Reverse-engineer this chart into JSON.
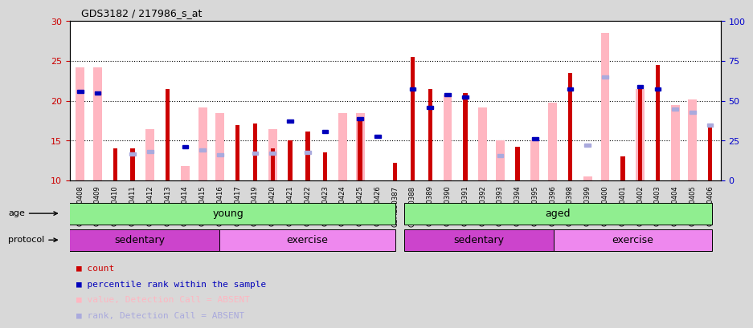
{
  "title": "GDS3182 / 217986_s_at",
  "samples": [
    "GSM230408",
    "GSM230409",
    "GSM230410",
    "GSM230411",
    "GSM230412",
    "GSM230413",
    "GSM230414",
    "GSM230415",
    "GSM230416",
    "GSM230417",
    "GSM230419",
    "GSM230420",
    "GSM230421",
    "GSM230422",
    "GSM230423",
    "GSM230424",
    "GSM230425",
    "GSM230426",
    "GSM230387",
    "GSM230388",
    "GSM230389",
    "GSM230390",
    "GSM230391",
    "GSM230392",
    "GSM230393",
    "GSM230394",
    "GSM230395",
    "GSM230396",
    "GSM230398",
    "GSM230399",
    "GSM230400",
    "GSM230401",
    "GSM230402",
    "GSM230403",
    "GSM230404",
    "GSM230405",
    "GSM230406"
  ],
  "red_values": [
    null,
    null,
    14.0,
    14.0,
    null,
    21.5,
    null,
    null,
    null,
    17.0,
    17.2,
    14.0,
    15.0,
    16.2,
    13.5,
    null,
    18.0,
    null,
    12.2,
    25.5,
    21.5,
    null,
    21.0,
    null,
    null,
    14.2,
    null,
    null,
    23.5,
    null,
    null,
    13.0,
    22.0,
    24.5,
    null,
    null,
    16.8
  ],
  "pink_values": [
    24.2,
    24.2,
    null,
    null,
    16.5,
    null,
    11.8,
    19.2,
    18.5,
    null,
    null,
    16.5,
    null,
    null,
    null,
    18.5,
    18.5,
    null,
    null,
    null,
    null,
    20.8,
    null,
    19.2,
    15.0,
    null,
    15.0,
    19.8,
    null,
    10.5,
    28.5,
    null,
    21.5,
    null,
    19.5,
    20.2,
    null
  ],
  "blue_sq_values": [
    21.2,
    21.0,
    null,
    null,
    null,
    null,
    14.2,
    null,
    null,
    null,
    null,
    null,
    17.5,
    null,
    16.2,
    null,
    17.8,
    15.5,
    null,
    21.5,
    19.2,
    20.8,
    20.5,
    null,
    null,
    null,
    15.2,
    null,
    21.5,
    null,
    null,
    null,
    21.8,
    21.5,
    null,
    null,
    null
  ],
  "light_blue_sq_values": [
    null,
    null,
    null,
    16.5,
    18.2,
    null,
    null,
    19.0,
    16.2,
    null,
    17.2,
    17.0,
    null,
    17.5,
    null,
    null,
    null,
    null,
    null,
    null,
    null,
    null,
    null,
    null,
    15.8,
    null,
    null,
    null,
    null,
    22.0,
    65.0,
    null,
    null,
    null,
    45.0,
    43.0,
    35.0
  ],
  "ylim_left": [
    10,
    30
  ],
  "ylim_right": [
    0,
    100
  ],
  "yticks_left": [
    10,
    15,
    20,
    25,
    30
  ],
  "yticks_right": [
    0,
    25,
    50,
    75,
    100
  ],
  "age_color": "#90EE90",
  "protocol_sed_color": "#CC44CC",
  "protocol_ex_color": "#EE88EE",
  "red_color": "#CC0000",
  "pink_color": "#FFB6C1",
  "blue_sq_color": "#0000BB",
  "light_blue_sq_color": "#AAAADD",
  "bg_color": "#D8D8D8",
  "plot_bg": "#FFFFFF",
  "ylabel_left_color": "#CC0000",
  "ylabel_right_color": "#0000CC"
}
